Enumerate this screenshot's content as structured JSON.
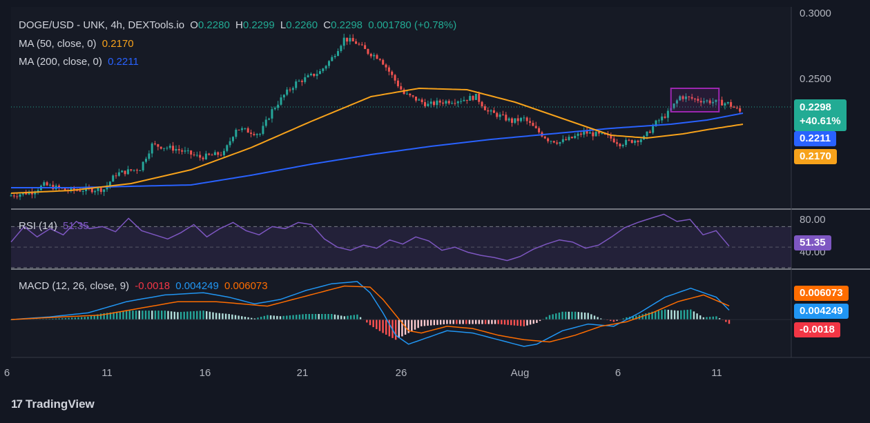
{
  "header": {
    "symbol": "DOGE/USD - UNK, 4h, DEXTools.io",
    "open_label": "O",
    "open": "0.2280",
    "high_label": "H",
    "high": "0.2299",
    "low_label": "L",
    "low": "0.2260",
    "close_label": "C",
    "close": "0.2298",
    "change": "0.001780 (+0.78%)"
  },
  "ma50": {
    "label": "MA (50, close, 0)",
    "value": "0.2170",
    "color": "#f7a21b"
  },
  "ma200": {
    "label": "MA (200, close, 0)",
    "value": "0.2211",
    "color": "#2962ff"
  },
  "rsi": {
    "label": "RSI (14)",
    "value": "51.35",
    "color": "#7e57c2"
  },
  "macd": {
    "label": "MACD (12, 26, close, 9)",
    "hist_value": "-0.0018",
    "macd_value": "0.004249",
    "signal_value": "0.006073"
  },
  "price_tags": {
    "last_price": "0.2298",
    "last_change": "+40.61%",
    "ma200": "0.2211",
    "ma50": "0.2170",
    "rsi": "51.35",
    "signal": "0.006073",
    "macd": "0.004249",
    "hist": "-0.0018"
  },
  "brand": "TradingView",
  "chart_data": {
    "type": "candlestick",
    "timeframe": "4h",
    "price_axis": {
      "ticks": [
        "0.3000",
        "0.2500"
      ],
      "ylim": [
        0.16,
        0.3
      ]
    },
    "rsi_axis": {
      "ticks": [
        "80.00",
        "40.00"
      ],
      "ylim": [
        30,
        85
      ],
      "bands": [
        70,
        50,
        30
      ]
    },
    "x_ticks": [
      "6",
      "11",
      "16",
      "21",
      "26",
      "Aug",
      "6",
      "11"
    ],
    "grid": false,
    "price_path": [
      [
        0,
        0.168
      ],
      [
        2,
        0.171
      ],
      [
        3,
        0.176
      ],
      [
        5,
        0.172
      ],
      [
        8,
        0.173
      ],
      [
        9,
        0.184
      ],
      [
        11,
        0.188
      ],
      [
        12,
        0.205
      ],
      [
        14,
        0.202
      ],
      [
        16,
        0.196
      ],
      [
        18,
        0.199
      ],
      [
        19,
        0.217
      ],
      [
        21,
        0.213
      ],
      [
        22,
        0.23
      ],
      [
        23,
        0.241
      ],
      [
        24,
        0.25
      ],
      [
        26,
        0.258
      ],
      [
        27,
        0.268
      ],
      [
        28,
        0.282
      ],
      [
        29,
        0.279
      ],
      [
        30,
        0.272
      ],
      [
        31,
        0.268
      ],
      [
        32,
        0.255
      ],
      [
        33,
        0.242
      ],
      [
        35,
        0.234
      ],
      [
        36,
        0.236
      ],
      [
        38,
        0.238
      ],
      [
        39,
        0.24
      ],
      [
        40,
        0.229
      ],
      [
        41,
        0.226
      ],
      [
        42,
        0.222
      ],
      [
        43,
        0.224
      ],
      [
        44,
        0.216
      ],
      [
        45,
        0.209
      ],
      [
        46,
        0.207
      ],
      [
        47,
        0.21
      ],
      [
        48,
        0.214
      ],
      [
        50,
        0.211
      ],
      [
        51,
        0.206
      ],
      [
        52,
        0.208
      ],
      [
        53,
        0.21
      ],
      [
        54,
        0.221
      ],
      [
        55,
        0.228
      ],
      [
        56,
        0.24
      ],
      [
        58,
        0.237
      ],
      [
        59,
        0.236
      ],
      [
        60,
        0.235
      ],
      [
        61,
        0.229
      ]
    ],
    "ma50_path": [
      [
        0,
        0.17
      ],
      [
        5,
        0.172
      ],
      [
        10,
        0.177
      ],
      [
        15,
        0.187
      ],
      [
        20,
        0.203
      ],
      [
        25,
        0.222
      ],
      [
        30,
        0.24
      ],
      [
        34,
        0.246
      ],
      [
        38,
        0.245
      ],
      [
        42,
        0.236
      ],
      [
        46,
        0.224
      ],
      [
        50,
        0.212
      ],
      [
        53,
        0.21
      ],
      [
        56,
        0.213
      ],
      [
        58,
        0.216
      ],
      [
        61,
        0.22
      ]
    ],
    "ma200_path": [
      [
        0,
        0.174
      ],
      [
        5,
        0.174
      ],
      [
        10,
        0.175
      ],
      [
        15,
        0.176
      ],
      [
        20,
        0.183
      ],
      [
        25,
        0.191
      ],
      [
        30,
        0.198
      ],
      [
        35,
        0.204
      ],
      [
        40,
        0.209
      ],
      [
        45,
        0.213
      ],
      [
        50,
        0.217
      ],
      [
        55,
        0.22
      ],
      [
        58,
        0.223
      ],
      [
        61,
        0.228
      ]
    ],
    "rsi_path": [
      [
        0,
        55
      ],
      [
        1,
        70
      ],
      [
        2,
        60
      ],
      [
        3,
        68
      ],
      [
        4,
        62
      ],
      [
        5,
        75
      ],
      [
        6,
        68
      ],
      [
        7,
        70
      ],
      [
        8,
        65
      ],
      [
        9,
        78
      ],
      [
        10,
        66
      ],
      [
        11,
        62
      ],
      [
        12,
        58
      ],
      [
        13,
        64
      ],
      [
        14,
        72
      ],
      [
        15,
        60
      ],
      [
        16,
        68
      ],
      [
        17,
        74
      ],
      [
        18,
        66
      ],
      [
        19,
        62
      ],
      [
        20,
        70
      ],
      [
        21,
        68
      ],
      [
        22,
        74
      ],
      [
        23,
        72
      ],
      [
        24,
        58
      ],
      [
        25,
        50
      ],
      [
        26,
        47
      ],
      [
        27,
        52
      ],
      [
        28,
        49
      ],
      [
        29,
        57
      ],
      [
        30,
        53
      ],
      [
        31,
        60
      ],
      [
        32,
        56
      ],
      [
        33,
        47
      ],
      [
        34,
        50
      ],
      [
        35,
        45
      ],
      [
        36,
        42
      ],
      [
        37,
        40
      ],
      [
        38,
        37
      ],
      [
        39,
        41
      ],
      [
        40,
        48
      ],
      [
        41,
        53
      ],
      [
        42,
        57
      ],
      [
        43,
        55
      ],
      [
        44,
        49
      ],
      [
        45,
        52
      ],
      [
        46,
        60
      ],
      [
        47,
        69
      ],
      [
        48,
        74
      ],
      [
        49,
        78
      ],
      [
        50,
        82
      ],
      [
        51,
        75
      ],
      [
        52,
        77
      ],
      [
        53,
        62
      ],
      [
        54,
        66
      ],
      [
        55,
        51
      ]
    ],
    "macd_path": [
      [
        0,
        0.0
      ],
      [
        3,
        0.0012
      ],
      [
        6,
        0.003
      ],
      [
        9,
        0.008
      ],
      [
        12,
        0.011
      ],
      [
        15,
        0.012
      ],
      [
        17,
        0.01
      ],
      [
        19,
        0.007
      ],
      [
        21,
        0.009
      ],
      [
        23,
        0.013
      ],
      [
        25,
        0.016
      ],
      [
        27,
        0.017
      ],
      [
        28,
        0.012
      ],
      [
        29,
        0.003
      ],
      [
        30,
        -0.007
      ],
      [
        31,
        -0.011
      ],
      [
        32,
        -0.009
      ],
      [
        34,
        -0.005
      ],
      [
        36,
        -0.006
      ],
      [
        38,
        -0.009
      ],
      [
        40,
        -0.012
      ],
      [
        41,
        -0.011
      ],
      [
        43,
        -0.005
      ],
      [
        45,
        -0.002
      ],
      [
        47,
        -0.003
      ],
      [
        49,
        0.003
      ],
      [
        51,
        0.01
      ],
      [
        53,
        0.014
      ],
      [
        55,
        0.01
      ],
      [
        56,
        0.0042
      ]
    ],
    "signal_path": [
      [
        0,
        0.0
      ],
      [
        4,
        0.0012
      ],
      [
        7,
        0.002
      ],
      [
        10,
        0.005
      ],
      [
        13,
        0.008
      ],
      [
        16,
        0.008
      ],
      [
        18,
        0.007
      ],
      [
        20,
        0.006
      ],
      [
        22,
        0.009
      ],
      [
        24,
        0.012
      ],
      [
        26,
        0.015
      ],
      [
        28,
        0.0145
      ],
      [
        29,
        0.009
      ],
      [
        30,
        0.002
      ],
      [
        31,
        -0.005
      ],
      [
        32,
        -0.006
      ],
      [
        34,
        -0.003
      ],
      [
        36,
        -0.004
      ],
      [
        38,
        -0.007
      ],
      [
        40,
        -0.009
      ],
      [
        42,
        -0.01
      ],
      [
        44,
        -0.007
      ],
      [
        46,
        -0.003
      ],
      [
        48,
        -0.001
      ],
      [
        50,
        0.003
      ],
      [
        52,
        0.008
      ],
      [
        54,
        0.011
      ],
      [
        56,
        0.0061
      ]
    ],
    "macd_ylim": [
      -0.016,
      0.021
    ],
    "series": [
      {
        "name": "MA (50, close, 0)",
        "last": 0.217
      },
      {
        "name": "MA (200, close, 0)",
        "last": 0.2211
      }
    ],
    "annotations": [
      {
        "type": "rectangle",
        "color": "#9c27b0",
        "x_range": [
          55,
          59
        ],
        "y_range": [
          0.229,
          0.246
        ]
      }
    ]
  }
}
